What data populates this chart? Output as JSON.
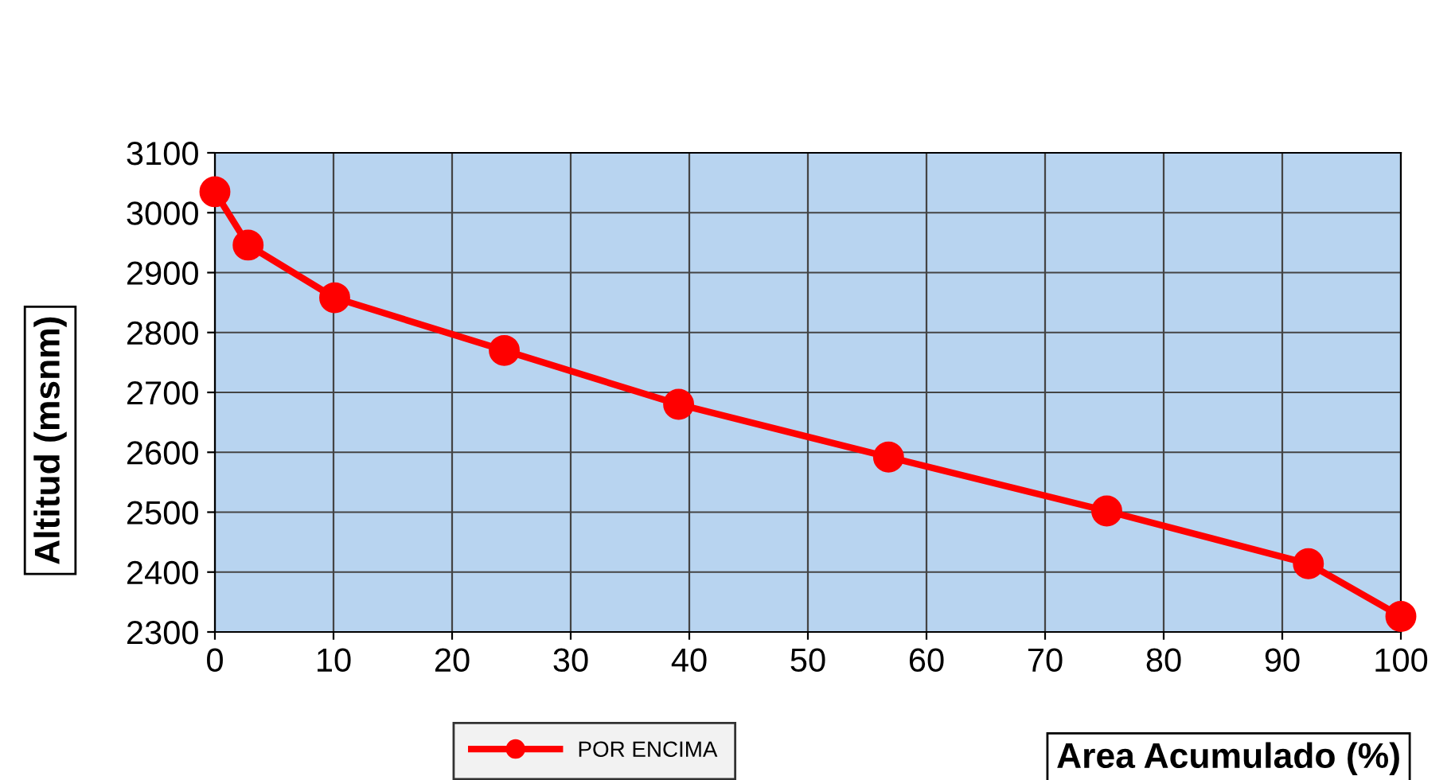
{
  "chart_data": {
    "type": "line",
    "xlabel": "Area Acumulado (%)",
    "ylabel": "Altitud (msnm)",
    "x": [
      0,
      2.8,
      10.1,
      24.4,
      39.1,
      56.8,
      75.2,
      92.2,
      100
    ],
    "series": [
      {
        "name": "POR ENCIMA",
        "color": "#ff0000",
        "values": [
          3035,
          2946,
          2858,
          2770,
          2680,
          2592,
          2502,
          2414,
          2326
        ]
      }
    ],
    "xlim": [
      0,
      100
    ],
    "xticks": [
      0,
      10,
      20,
      30,
      40,
      50,
      60,
      70,
      80,
      90,
      100
    ],
    "ylim": [
      2300,
      3100
    ],
    "yticks": [
      2300,
      2400,
      2500,
      2600,
      2700,
      2800,
      2900,
      3000,
      3100
    ],
    "grid": true,
    "legend": "bottom",
    "marker": "circle",
    "line_style": "solid"
  }
}
